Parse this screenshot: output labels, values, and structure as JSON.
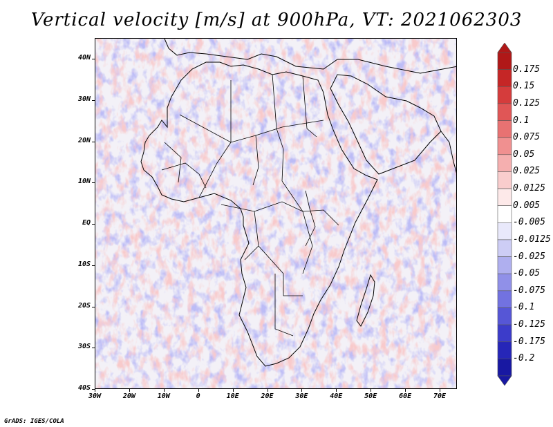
{
  "title": "Vertical velocity [m/s] at 900hPa, VT: 2021062303",
  "credit": "GrADS: IGES/COLA",
  "map": {
    "region": "Africa",
    "lat_range": [
      -40,
      45
    ],
    "lon_range": [
      -30,
      75
    ],
    "lat_ticks": [
      "40N",
      "30N",
      "20N",
      "10N",
      "EQ",
      "10S",
      "20S",
      "30S",
      "40S"
    ],
    "lon_ticks": [
      "30W",
      "20W",
      "10W",
      "0",
      "10E",
      "20E",
      "30E",
      "40E",
      "50E",
      "60E",
      "70E"
    ]
  },
  "colorbar": {
    "labels": [
      "0.175",
      "0.15",
      "0.125",
      "0.1",
      "0.075",
      "0.05",
      "0.025",
      "0.0125",
      "0.005",
      "-0.005",
      "-0.0125",
      "-0.025",
      "-0.05",
      "-0.075",
      "-0.1",
      "-0.125",
      "-0.175",
      "-0.2"
    ],
    "colors": [
      "#b01818",
      "#c52626",
      "#d53c3c",
      "#e05656",
      "#e87272",
      "#f09090",
      "#f5afaf",
      "#f9cdcd",
      "#fde9e9",
      "#ffffff",
      "#e9e9fb",
      "#cdcdf5",
      "#afafef",
      "#9090e8",
      "#7272e0",
      "#5656d6",
      "#3c3cca",
      "#2626b8",
      "#1818a2"
    ]
  }
}
